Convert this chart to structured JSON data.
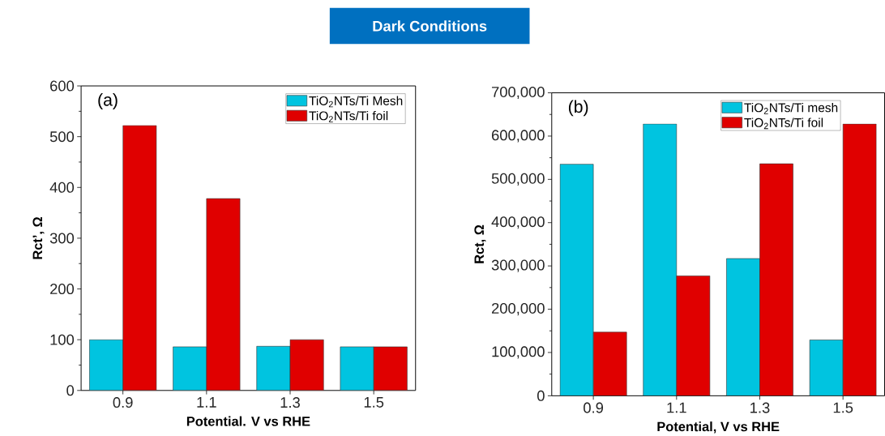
{
  "chart_data": [
    {
      "type": "bar",
      "title": "Dark Conditions",
      "annotations": [
        "(a)"
      ],
      "xlabel": "Potential. V vs RHE",
      "ylabel": "Rct’, Ω",
      "categories": [
        "0.9",
        "1.1",
        "1.3",
        "1.5"
      ],
      "series": [
        {
          "name": "TiO$_{2}$NTs/Ti Mesh",
          "color": "#00c4e0",
          "values": [
            100,
            86,
            87,
            86
          ]
        },
        {
          "name": "TiO$_{2}$NTs/Ti foil",
          "color": "#e00000",
          "values": [
            522,
            378,
            100,
            86
          ]
        }
      ],
      "ylim": [
        0,
        600
      ],
      "yticks": [
        0,
        100,
        200,
        300,
        400,
        500,
        600
      ],
      "legend": "top right"
    },
    {
      "type": "bar",
      "annotations": [
        "(b)"
      ],
      "xlabel": "Potential, V vs RHE",
      "ylabel": "Rct, Ω",
      "categories": [
        "0.9",
        "1.1",
        "1.3",
        "1.5"
      ],
      "series": [
        {
          "name": "TiO$_{2}$NTs/Ti mesh",
          "color": "#00c4e0",
          "values": [
            535000,
            628000,
            317000,
            129000
          ]
        },
        {
          "name": "TiO$_{2}$NTs/Ti foil",
          "color": "#e00000",
          "values": [
            147000,
            277000,
            536000,
            628000
          ]
        }
      ],
      "ylim": [
        0,
        700000
      ],
      "yticks": [
        {
          "value": 0,
          "label": "0"
        },
        {
          "value": 100000,
          "label": "100,000"
        },
        {
          "value": 200000,
          "label": "200,000"
        },
        {
          "value": 300000,
          "label": "300,000"
        },
        {
          "value": 400000,
          "label": "400,000"
        },
        {
          "value": 500000,
          "label": "500,000"
        },
        {
          "value": 600000,
          "label": "600,000"
        },
        {
          "value": 700000,
          "label": "700,000"
        }
      ],
      "legend": "top right"
    }
  ]
}
